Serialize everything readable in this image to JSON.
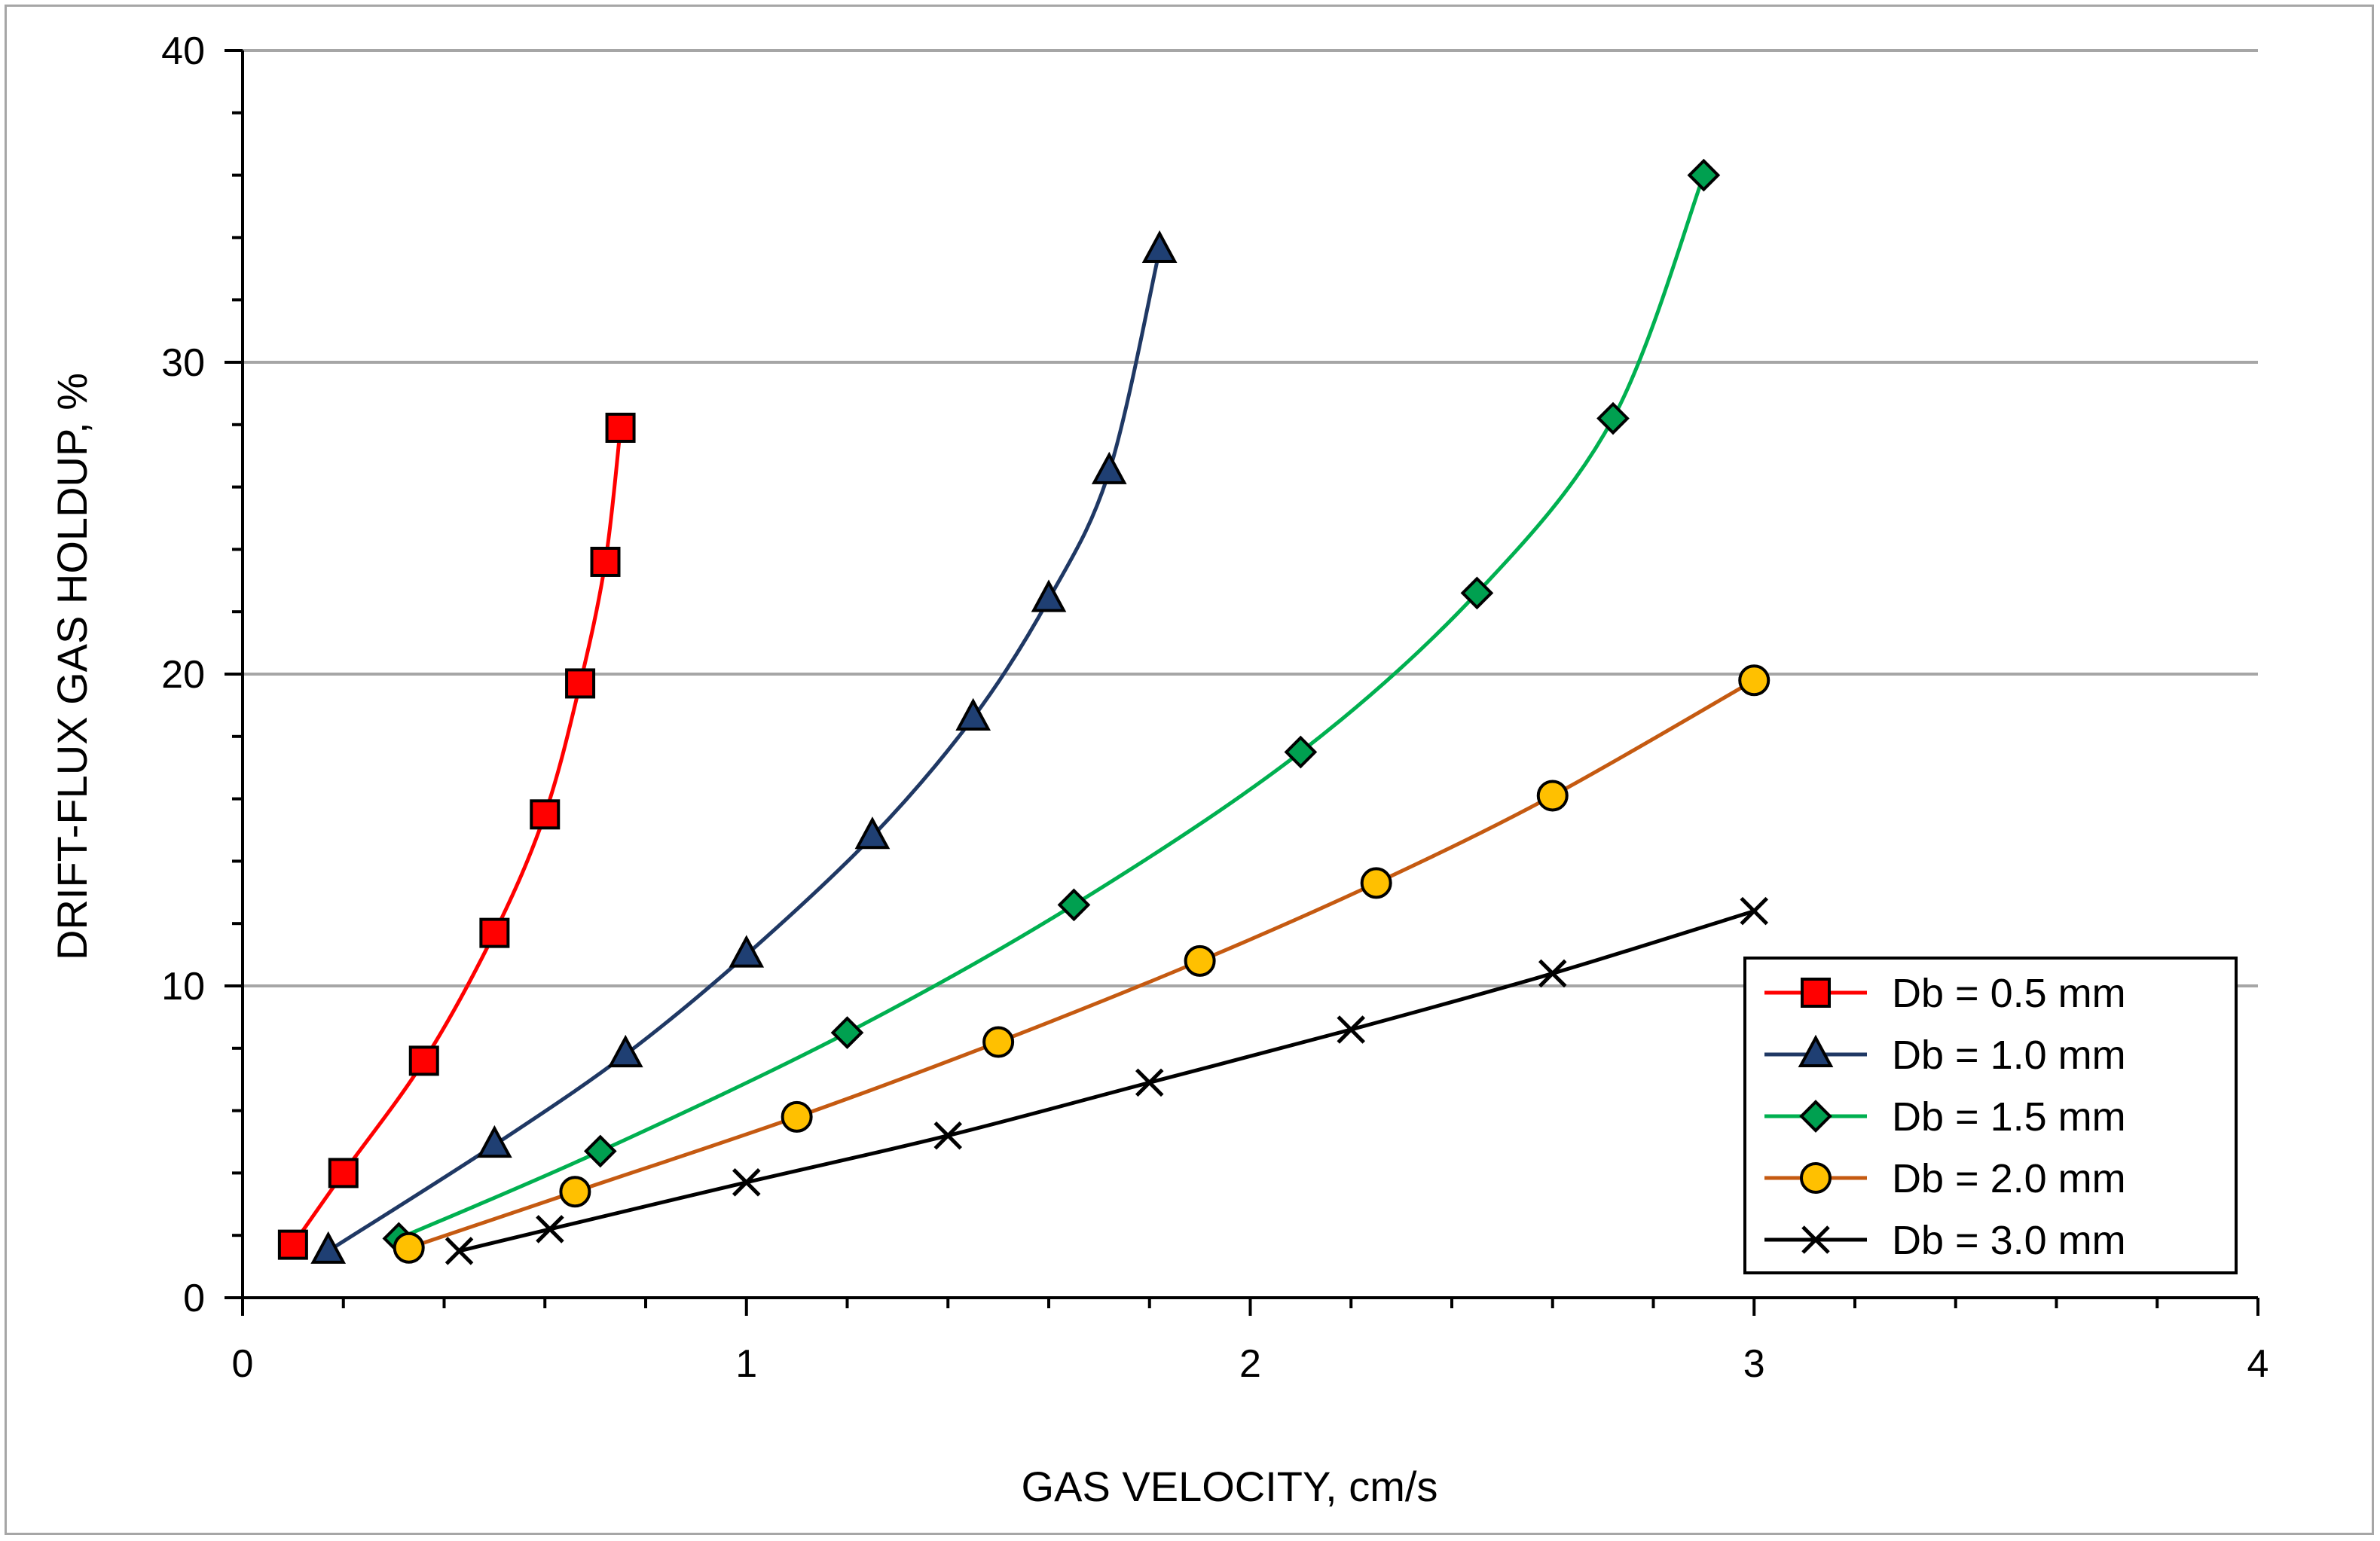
{
  "chart_data": {
    "type": "line",
    "title": "",
    "xlabel": "GAS VELOCITY, cm/s",
    "ylabel": "DRIFT-FLUX GAS HOLDUP, %",
    "xlim": [
      0,
      4
    ],
    "ylim": [
      0,
      40
    ],
    "xticks": [
      0,
      1,
      2,
      3,
      4
    ],
    "yticks": [
      0,
      10,
      20,
      30,
      40
    ],
    "x_tick_labels": [
      "0",
      "1",
      "2",
      "3",
      "4"
    ],
    "y_tick_labels": [
      "0",
      "10",
      "20",
      "30",
      "40"
    ],
    "grid": "horizontal major gridlines",
    "legend_position": "bottom-right",
    "series": [
      {
        "name": "Db = 0.5 mm",
        "color": "#ff0000",
        "marker": "square",
        "marker_fill": "#ff0000",
        "x": [
          0.1,
          0.2,
          0.36,
          0.5,
          0.6,
          0.67,
          0.72,
          0.75
        ],
        "y": [
          1.7,
          4.0,
          7.6,
          11.7,
          15.5,
          19.7,
          23.6,
          27.9
        ]
      },
      {
        "name": "Db = 1.0 mm",
        "color": "#1f3864",
        "marker": "triangle",
        "marker_fill": "#1f3f73",
        "x": [
          0.17,
          0.5,
          0.76,
          1.0,
          1.25,
          1.45,
          1.6,
          1.72,
          1.82
        ],
        "y": [
          1.5,
          4.9,
          7.8,
          11.0,
          14.8,
          18.6,
          22.4,
          26.5,
          33.6
        ]
      },
      {
        "name": "Db = 1.5 mm",
        "color": "#00b050",
        "marker": "diamond",
        "marker_fill": "#00a050",
        "x": [
          0.31,
          0.71,
          1.2,
          1.65,
          2.1,
          2.45,
          2.72,
          2.9
        ],
        "y": [
          1.9,
          4.7,
          8.5,
          12.6,
          17.5,
          22.6,
          28.2,
          36.0
        ]
      },
      {
        "name": "Db = 2.0 mm",
        "color": "#c55a11",
        "marker": "circle",
        "marker_fill": "#ffc000",
        "x": [
          0.33,
          0.66,
          1.1,
          1.5,
          1.9,
          2.25,
          2.6,
          3.0
        ],
        "y": [
          1.6,
          3.4,
          5.8,
          8.2,
          10.8,
          13.3,
          16.1,
          19.8
        ]
      },
      {
        "name": "Db = 3.0 mm",
        "color": "#000000",
        "marker": "x",
        "marker_fill": "#000000",
        "x": [
          0.43,
          0.61,
          1.0,
          1.4,
          1.8,
          2.2,
          2.6,
          3.0
        ],
        "y": [
          1.5,
          2.2,
          3.7,
          5.2,
          6.9,
          8.6,
          10.4,
          12.4
        ]
      }
    ]
  }
}
